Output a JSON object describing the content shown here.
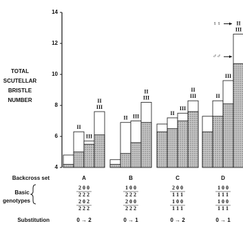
{
  "chart_data": {
    "type": "bar",
    "y_label_lines": [
      "TOTAL",
      "SCUTELLAR",
      "BRISTLE",
      "NUMBER"
    ],
    "categories": [
      null,
      "II",
      "III",
      "III",
      null,
      "II",
      "III",
      "III",
      null,
      "II",
      "III",
      "III",
      null,
      "II",
      "III",
      "III"
    ],
    "upper_labels": [
      null,
      null,
      null,
      "II",
      null,
      null,
      null,
      "II",
      null,
      null,
      null,
      "II",
      null,
      null,
      null,
      "II"
    ],
    "series": [
      {
        "name": "♀♀",
        "color": "#ffffff",
        "values": [
          4.8,
          6.3,
          5.7,
          7.6,
          4.5,
          6.9,
          7.0,
          8.2,
          6.8,
          7.2,
          7.5,
          8.3,
          7.3,
          8.3,
          9.6,
          12.6
        ]
      },
      {
        "name": "♂♂",
        "color": "#b5b5b5",
        "values": [
          4.2,
          5.0,
          5.5,
          6.1,
          4.2,
          4.9,
          5.6,
          6.9,
          6.3,
          6.5,
          7.0,
          7.6,
          6.3,
          7.3,
          8.1,
          10.7
        ]
      }
    ],
    "ylim": [
      4,
      14
    ],
    "yticks": [
      4,
      6,
      8,
      10,
      12,
      14
    ],
    "group_row_label": "Backcross set",
    "groups": [
      "A",
      "B",
      "C",
      "D"
    ],
    "genotype_row_label": [
      "Basic",
      "genotypes"
    ],
    "genotypes": [
      {
        "upper": [
          "2 0 0",
          "2 2 2"
        ],
        "lower": [
          "2 0 2",
          "2 2 2"
        ]
      },
      {
        "upper": [
          "1 0 0",
          "2 2 2"
        ],
        "lower": [
          "2 0 0",
          "2 2 2"
        ]
      },
      {
        "upper": [
          "2 0 0",
          "1 1 1"
        ],
        "lower": [
          "1 0 0",
          "1 1 1"
        ]
      },
      {
        "upper": [
          "1 0 0",
          "1 1 1"
        ],
        "lower": [
          "1 0 0",
          "1 1 1"
        ]
      }
    ],
    "substitution_row_label": "Substitution",
    "substitutions": [
      "0 → 2",
      "0 → 1",
      "0 → 2",
      "0 → 1"
    ]
  }
}
